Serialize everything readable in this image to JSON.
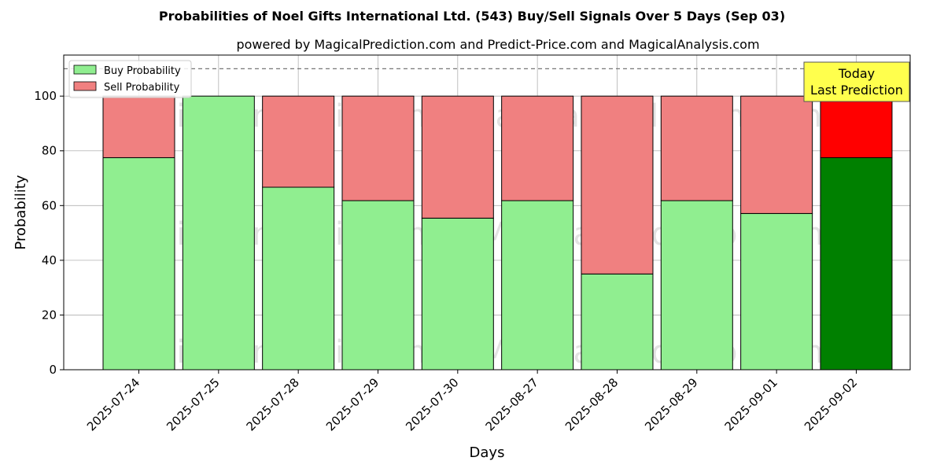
{
  "chart_data": {
    "type": "bar",
    "stacked": true,
    "title": "Probabilities of Noel Gifts International Ltd. (543) Buy/Sell Signals Over 5 Days (Sep 03)",
    "subtitle": "powered by MagicalPrediction.com and Predict-Price.com and MagicalAnalysis.com",
    "xlabel": "Days",
    "ylabel": "Probability",
    "ylim": [
      0,
      115
    ],
    "yticks": [
      0,
      20,
      40,
      60,
      80,
      100
    ],
    "grid": true,
    "legend_position": "top-left",
    "categories": [
      "2025-07-24",
      "2025-07-25",
      "2025-07-28",
      "2025-07-29",
      "2025-07-30",
      "2025-08-27",
      "2025-08-28",
      "2025-08-29",
      "2025-09-01",
      "2025-09-02"
    ],
    "series": [
      {
        "name": "Buy Probability",
        "color": "#90ee90",
        "values": [
          77.5,
          100,
          66.7,
          61.8,
          55.4,
          61.8,
          35.0,
          61.8,
          57.1,
          77.5
        ]
      },
      {
        "name": "Sell Probability",
        "color": "#f08080",
        "values": [
          22.5,
          0,
          33.3,
          38.2,
          44.6,
          38.2,
          65.0,
          38.2,
          42.9,
          22.5
        ]
      }
    ],
    "highlight": {
      "index": 9,
      "buy_color": "#008000",
      "sell_color": "#ff0000"
    },
    "reference_line": {
      "y": 110,
      "style": "dashed"
    },
    "annotation": {
      "line1": "Today",
      "line2": "Last Prediction",
      "background": "#ffff4d"
    },
    "watermarks": [
      "MagicalAnalysis.com",
      "MagicalPrediction.com"
    ]
  }
}
